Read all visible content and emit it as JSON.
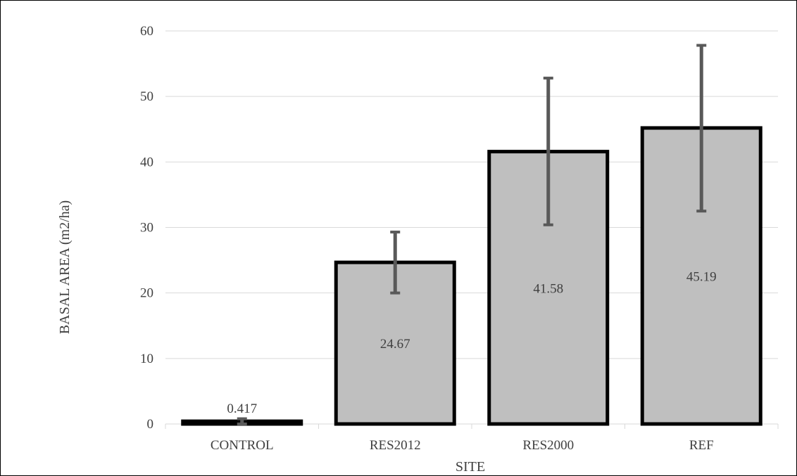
{
  "chart_data": {
    "type": "bar",
    "title": "",
    "xlabel": "SITE",
    "ylabel": "BASAL AREA (m2/ha)",
    "ylim": [
      0,
      60
    ],
    "yticks": [
      0,
      10,
      20,
      30,
      40,
      50,
      60
    ],
    "grid": true,
    "legend": "none",
    "categories": [
      "CONTROL",
      "RES2012",
      "RES2000",
      "REF"
    ],
    "values": [
      0.417,
      24.67,
      41.58,
      45.19
    ],
    "data_labels": [
      "0.417",
      "24.67",
      "41.58",
      "45.19"
    ],
    "error_low": [
      0.0,
      20.0,
      30.4,
      32.5
    ],
    "error_high": [
      0.8,
      29.3,
      52.8,
      57.8
    ],
    "colors": {
      "bar_fill": "#bfbfbf",
      "bar_border": "#000000",
      "error_bar": "#595959",
      "grid": "#d9d9d9",
      "text": "#404040"
    }
  }
}
